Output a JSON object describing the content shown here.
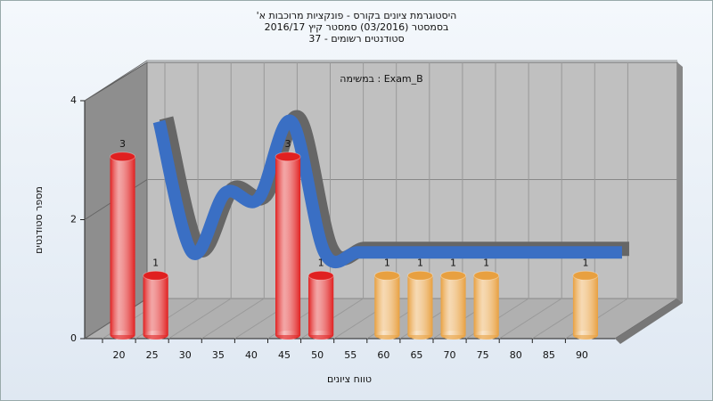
{
  "chart_data": {
    "type": "bar3d",
    "title_lines": [
      "היסטוגרמת ציונים בקורס - פונקציות מרוכבות א'",
      "בסמסטר (03/2016) סמסטר קיץ 2016/17",
      "סטודנטים רשומים - 37"
    ],
    "annotation": "במשימה : Exam_B",
    "x_label": "טווח ציונים",
    "y_label": "מספר סטודנטים",
    "categories": [
      "20",
      "25",
      "30",
      "35",
      "40",
      "45",
      "50",
      "55",
      "60",
      "65",
      "70",
      "75",
      "80",
      "85",
      "90"
    ],
    "values": [
      3,
      1,
      0,
      0,
      0,
      3,
      1,
      0,
      1,
      1,
      1,
      1,
      0,
      0,
      1
    ],
    "colors": [
      "#e02020",
      "#e02020",
      "#e02020",
      "#e02020",
      "#e02020",
      "#e02020",
      "#e02020",
      "#e02020",
      "#e8a040",
      "#e8a040",
      "#e8a040",
      "#e8a040",
      "#e8a040",
      "#e8a040",
      "#e8a040"
    ],
    "line": {
      "color": "#3a6fc4",
      "values": [
        3.2,
        1.0,
        2.0,
        1.9,
        3.2,
        1.0,
        1,
        1,
        1,
        1,
        1,
        1,
        1,
        1,
        1
      ]
    },
    "ylim": [
      0,
      4
    ],
    "yticks": [
      0,
      2,
      4
    ]
  }
}
